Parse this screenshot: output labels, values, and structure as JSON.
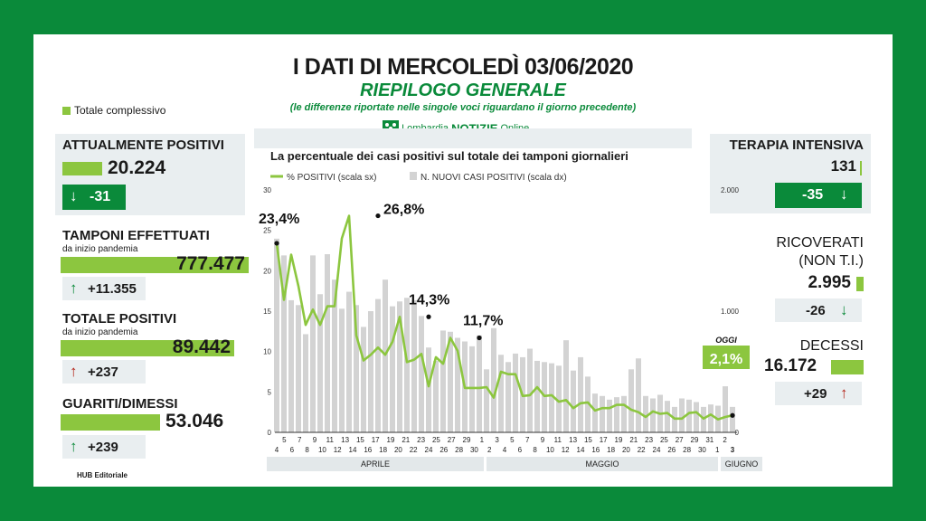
{
  "header": {
    "title": "I DATI DI MERCOLEDÌ 03/06/2020",
    "subtitle": "RIEPILOGO GENERALE",
    "note": "(le differenze riportate nelle singole voci riguardano il giorno precedente)",
    "legend_total": "Totale complessivo",
    "brand_a": "Lombardia ",
    "brand_b": "NOTIZIE",
    "brand_c": " Online",
    "footer": "HUB Editoriale"
  },
  "left": {
    "attualmente": {
      "label": "ATTUALMENTE POSITIVI",
      "value": "20.224",
      "delta": "-31"
    },
    "tamponi": {
      "label": "TAMPONI EFFETTUATI",
      "sub": "da inizio pandemia",
      "value": "777.477",
      "delta": "+11.355"
    },
    "totale": {
      "label": "TOTALE POSITIVI",
      "sub": "da inizio pandemia",
      "value": "89.442",
      "delta": "+237"
    },
    "guariti": {
      "label": "GUARITI/DIMESSI",
      "value": "53.046",
      "delta": "+239"
    }
  },
  "right": {
    "terapia": {
      "label": "TERAPIA INTENSIVA",
      "value": "131",
      "delta": "-35"
    },
    "ricoverati": {
      "label1": "RICOVERATI",
      "label2": "(NON T.I.)",
      "value": "2.995",
      "delta": "-26"
    },
    "decessi": {
      "label": "DECESSI",
      "value": "16.172",
      "delta": "+29"
    }
  },
  "colors": {
    "green_dark": "#0a8a3a",
    "green_light": "#8cc63f",
    "bar_gray": "#d3d3d3",
    "box": "#e9eef0",
    "red": "#b42318"
  },
  "chart_data": {
    "type": "bar",
    "title": "La percentuale dei casi positivi sul totale dei tamponi giornalieri",
    "legend": [
      "% POSITIVI (scala sx)",
      "N. NUOVI CASI POSITIVI (scala dx)"
    ],
    "yleft": {
      "ticks": [
        "0",
        "5",
        "10",
        "15",
        "20",
        "25",
        "30"
      ],
      "range": [
        0,
        30
      ]
    },
    "yright": {
      "ticks": [
        "0",
        "1.000",
        "2.000"
      ],
      "range": [
        0,
        2000
      ]
    },
    "x_top": [
      "5",
      "7",
      "9",
      "11",
      "13",
      "15",
      "17",
      "19",
      "21",
      "23",
      "25",
      "27",
      "29",
      "1",
      "3",
      "5",
      "7",
      "9",
      "11",
      "13",
      "15",
      "17",
      "19",
      "21",
      "23",
      "25",
      "27",
      "29",
      "31",
      "2"
    ],
    "x_bottom": [
      "4",
      "6",
      "8",
      "10",
      "12",
      "14",
      "16",
      "18",
      "20",
      "22",
      "24",
      "26",
      "28",
      "30",
      "2",
      "4",
      "6",
      "8",
      "10",
      "12",
      "14",
      "16",
      "18",
      "20",
      "22",
      "24",
      "26",
      "28",
      "30",
      "1",
      "3"
    ],
    "months": [
      "APRILE",
      "MAGGIO",
      "GIUGNO"
    ],
    "series": [
      {
        "name": "% POSITIVI (scala sx)",
        "values": [
          23.4,
          16.4,
          22.0,
          18.1,
          13.3,
          15.2,
          13.3,
          15.6,
          15.6,
          24.0,
          26.8,
          12.0,
          8.9,
          9.6,
          10.5,
          9.6,
          11.2,
          14.3,
          8.7,
          9.0,
          9.7,
          5.7,
          9.3,
          8.5,
          11.7,
          10.1,
          5.5,
          5.5,
          5.5,
          5.6,
          4.3,
          7.5,
          7.2,
          7.2,
          4.5,
          4.6,
          5.6,
          4.5,
          4.6,
          3.8,
          4.0,
          3.0,
          3.6,
          3.7,
          2.7,
          3.0,
          3.0,
          3.4,
          3.4,
          2.8,
          2.5,
          1.9,
          2.6,
          2.3,
          2.4,
          1.7,
          1.7,
          2.4,
          2.5,
          1.7,
          2.2,
          1.6,
          1.9,
          2.1
        ]
      },
      {
        "name": "N. NUOVI CASI POSITIVI (scala dx)",
        "values": [
          1598,
          1460,
          1090,
          1050,
          810,
          1460,
          1140,
          1470,
          1260,
          1020,
          1160,
          1050,
          870,
          1000,
          1100,
          1260,
          1040,
          1080,
          1110,
          1090,
          960,
          700,
          590,
          840,
          830,
          780,
          750,
          710,
          800,
          520,
          860,
          640,
          580,
          650,
          620,
          690,
          590,
          580,
          570,
          550,
          760,
          510,
          620,
          460,
          320,
          300,
          270,
          290,
          300,
          520,
          610,
          300,
          280,
          310,
          260,
          210,
          280,
          270,
          250,
          210,
          230,
          220,
          380,
          210
        ]
      },
      {
        "name": "",
        "values": []
      }
    ],
    "annotations": [
      {
        "label": "23,4%",
        "value": 23.4
      },
      {
        "label": "26,8%",
        "value": 26.8
      },
      {
        "label": "14,3%",
        "value": 14.3
      },
      {
        "label": "11,7%",
        "value": 11.7
      },
      {
        "label": "2,1%",
        "value": 2.1,
        "tag": "OGGI"
      }
    ]
  }
}
